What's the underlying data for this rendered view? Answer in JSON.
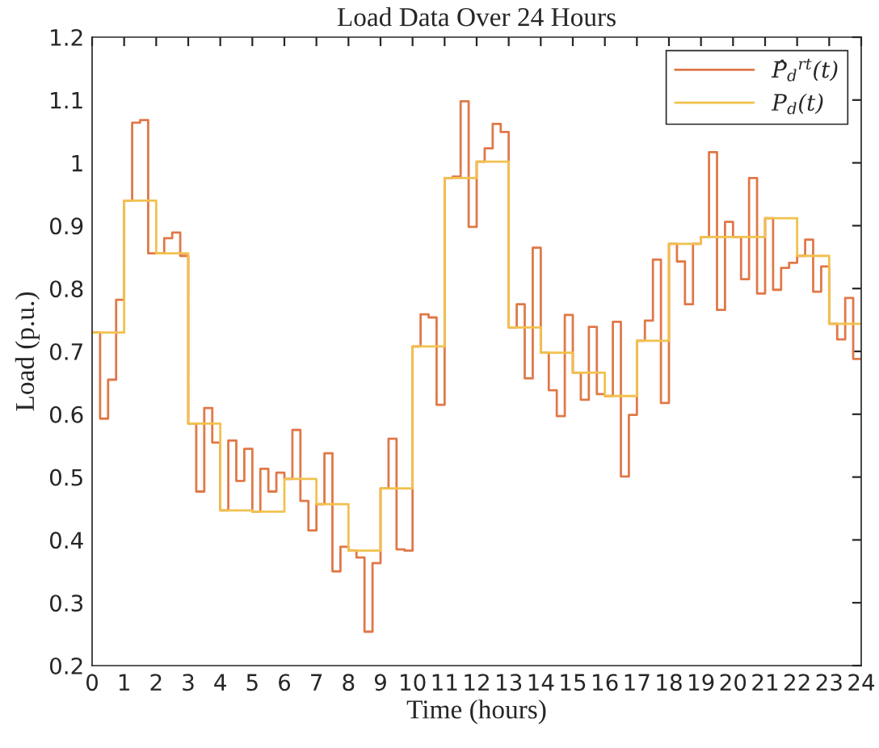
{
  "chart_data": {
    "type": "step",
    "title": "Load Data Over 24 Hours",
    "xlabel": "Time (hours)",
    "ylabel": "Load (p.u.)",
    "xlim": [
      0,
      24
    ],
    "xticks": [
      0,
      1,
      2,
      3,
      4,
      5,
      6,
      7,
      8,
      9,
      10,
      11,
      12,
      13,
      14,
      15,
      16,
      17,
      18,
      19,
      20,
      21,
      22,
      23,
      24
    ],
    "ylim": [
      0.2,
      1.2
    ],
    "yticks": [
      0.2,
      0.3,
      0.4,
      0.5,
      0.6,
      0.7,
      0.8,
      0.9,
      1,
      1.1,
      1.2
    ],
    "grid": false,
    "legend": "top right",
    "line_style": "solid",
    "marker": "none",
    "series": [
      {
        "name": "P̂$_{d}$$^{rt}$(t)",
        "color": "#e07848",
        "x": [
          0,
          0.25,
          0.5,
          0.75,
          1,
          1.25,
          1.5,
          1.75,
          2,
          2.25,
          2.5,
          2.75,
          3,
          3.25,
          3.5,
          3.75,
          4,
          4.25,
          4.5,
          4.75,
          5,
          5.25,
          5.5,
          5.75,
          6,
          6.25,
          6.5,
          6.75,
          7,
          7.25,
          7.5,
          7.75,
          8,
          8.25,
          8.5,
          8.75,
          9,
          9.25,
          9.5,
          9.75,
          10,
          10.25,
          10.5,
          10.75,
          11,
          11.25,
          11.5,
          11.75,
          12,
          12.25,
          12.5,
          12.75,
          13,
          13.25,
          13.5,
          13.75,
          14,
          14.25,
          14.5,
          14.75,
          15,
          15.25,
          15.5,
          15.75,
          16,
          16.25,
          16.5,
          16.75,
          17,
          17.25,
          17.5,
          17.75,
          18,
          18.25,
          18.5,
          18.75,
          19,
          19.25,
          19.5,
          19.75,
          20,
          20.25,
          20.5,
          20.75,
          21,
          21.25,
          21.5,
          21.75,
          22,
          22.25,
          22.5,
          22.75,
          23,
          23.25,
          23.5,
          23.75,
          24
        ],
        "values": [
          0.73,
          0.593,
          0.655,
          0.782,
          0.94,
          1.064,
          1.068,
          0.856,
          0.856,
          0.88,
          0.889,
          0.852,
          0.585,
          0.477,
          0.61,
          0.555,
          0.447,
          0.558,
          0.494,
          0.545,
          0.445,
          0.513,
          0.477,
          0.507,
          0.497,
          0.575,
          0.462,
          0.415,
          0.457,
          0.538,
          0.35,
          0.389,
          0.383,
          0.372,
          0.254,
          0.363,
          0.482,
          0.561,
          0.385,
          0.383,
          0.708,
          0.759,
          0.754,
          0.615,
          0.976,
          0.978,
          1.098,
          0.898,
          1.002,
          1.023,
          1.062,
          1.049,
          0.738,
          0.775,
          0.657,
          0.865,
          0.698,
          0.638,
          0.597,
          0.758,
          0.666,
          0.623,
          0.739,
          0.632,
          0.629,
          0.747,
          0.501,
          0.599,
          0.717,
          0.749,
          0.846,
          0.618,
          0.871,
          0.843,
          0.775,
          0.871,
          0.882,
          1.017,
          0.766,
          0.906,
          0.882,
          0.815,
          0.976,
          0.792,
          0.912,
          0.798,
          0.833,
          0.841,
          0.852,
          0.878,
          0.795,
          0.835,
          0.744,
          0.719,
          0.785,
          0.688,
          0.688
        ]
      },
      {
        "name": "P$_{d}$(t)",
        "color": "#f2c14e",
        "x": [
          0,
          1,
          2,
          3,
          4,
          5,
          6,
          7,
          8,
          9,
          10,
          11,
          12,
          13,
          14,
          15,
          16,
          17,
          18,
          19,
          20,
          21,
          22,
          23,
          24
        ],
        "values": [
          0.73,
          0.94,
          0.856,
          0.585,
          0.447,
          0.445,
          0.497,
          0.457,
          0.383,
          0.482,
          0.708,
          0.976,
          1.002,
          0.738,
          0.698,
          0.666,
          0.629,
          0.717,
          0.871,
          0.882,
          0.882,
          0.912,
          0.852,
          0.744,
          0.744
        ]
      }
    ]
  }
}
